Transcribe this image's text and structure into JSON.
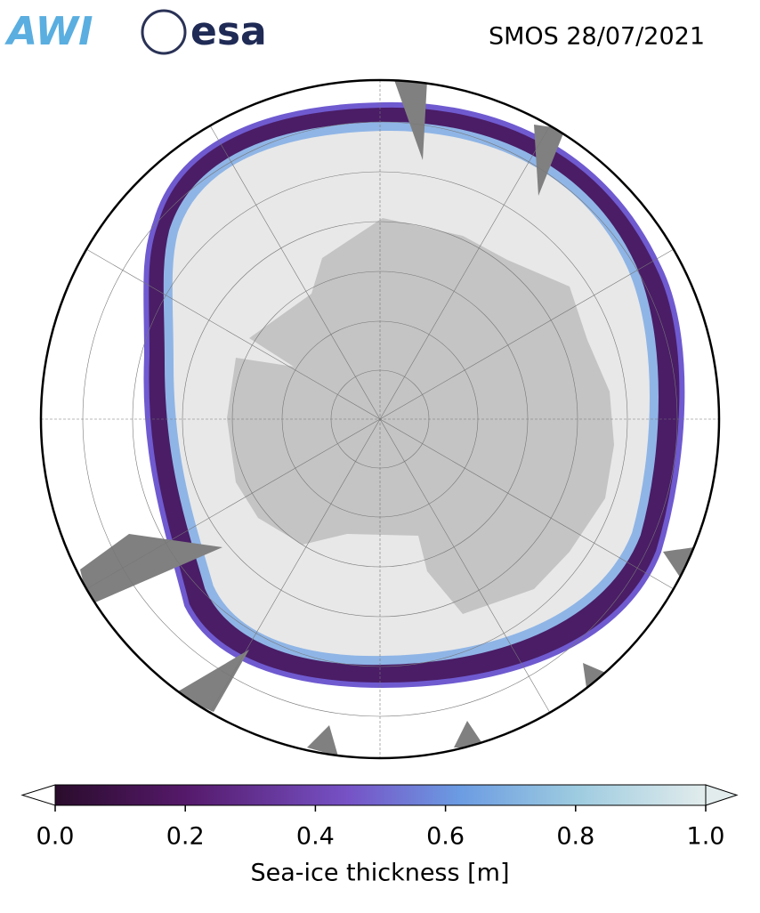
{
  "header": {
    "logos": [
      "AWI",
      "esa"
    ],
    "title": "SMOS 28/07/2021"
  },
  "colorbar": {
    "label": "Sea-ice thickness [m]",
    "lim": [
      0,
      1
    ],
    "ticks": [
      {
        "value": 0,
        "label": "0.0"
      },
      {
        "value": 0.2,
        "label": "0.2"
      },
      {
        "value": 0.4,
        "label": "0.4"
      },
      {
        "value": 0.6,
        "label": "0.6"
      },
      {
        "value": 0.8,
        "label": "0.8"
      },
      {
        "value": 1,
        "label": "1.0"
      }
    ]
  }
}
